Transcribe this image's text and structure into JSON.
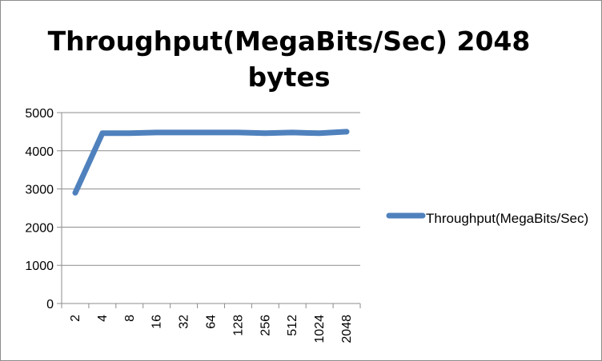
{
  "chart_data": {
    "type": "line",
    "title": "Throughput(MegaBits/Sec) 2048 bytes",
    "categories": [
      "2",
      "4",
      "8",
      "16",
      "32",
      "64",
      "128",
      "256",
      "512",
      "1024",
      "2048"
    ],
    "series": [
      {
        "name": "Throughput(MegaBits/Sec)",
        "values": [
          2900,
          4460,
          4460,
          4480,
          4480,
          4480,
          4480,
          4460,
          4480,
          4460,
          4500
        ],
        "color": "#4f81bd"
      }
    ],
    "yticks": [
      0,
      1000,
      2000,
      3000,
      4000,
      5000
    ],
    "ylim": [
      0,
      5000
    ],
    "grid": true,
    "legend": "right"
  }
}
